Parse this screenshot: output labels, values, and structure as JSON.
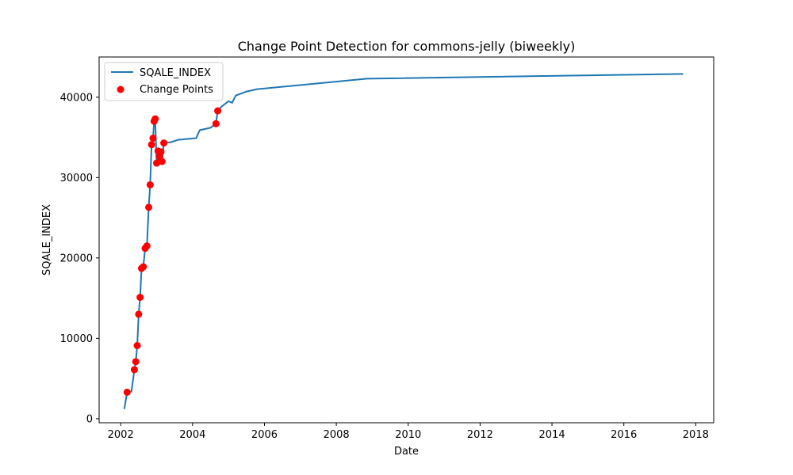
{
  "chart_data": {
    "type": "line",
    "title": "Change Point Detection for commons-jelly (biweekly)",
    "xlabel": "Date",
    "ylabel": "SQALE_INDEX",
    "xlim": [
      2001.4,
      2018.5
    ],
    "ylim": [
      -500,
      45000
    ],
    "x_ticks": [
      2002,
      2004,
      2006,
      2008,
      2010,
      2012,
      2014,
      2016,
      2018
    ],
    "x_tick_labels": [
      "2002",
      "2004",
      "2006",
      "2008",
      "2010",
      "2012",
      "2014",
      "2016",
      "2018"
    ],
    "y_ticks": [
      0,
      10000,
      20000,
      30000,
      40000
    ],
    "y_tick_labels": [
      "0",
      "10000",
      "20000",
      "30000",
      "40000"
    ],
    "legend_position": "upper-left",
    "series": [
      {
        "name": "SQALE_INDEX",
        "kind": "line",
        "color": "#1f77b4",
        "points": [
          [
            2002.1,
            1200
          ],
          [
            2002.18,
            3300
          ],
          [
            2002.3,
            3400
          ],
          [
            2002.38,
            6100
          ],
          [
            2002.42,
            7100
          ],
          [
            2002.46,
            9100
          ],
          [
            2002.5,
            13000
          ],
          [
            2002.54,
            15100
          ],
          [
            2002.58,
            18700
          ],
          [
            2002.63,
            18900
          ],
          [
            2002.68,
            21200
          ],
          [
            2002.73,
            21500
          ],
          [
            2002.78,
            26300
          ],
          [
            2002.82,
            29100
          ],
          [
            2002.86,
            34100
          ],
          [
            2002.9,
            34900
          ],
          [
            2002.93,
            37000
          ],
          [
            2002.96,
            37300
          ],
          [
            2003.0,
            31800
          ],
          [
            2003.04,
            33300
          ],
          [
            2003.08,
            32600
          ],
          [
            2003.12,
            33200
          ],
          [
            2003.15,
            32000
          ],
          [
            2003.2,
            34300
          ],
          [
            2003.4,
            34400
          ],
          [
            2003.6,
            34700
          ],
          [
            2004.1,
            34900
          ],
          [
            2004.2,
            35900
          ],
          [
            2004.5,
            36200
          ],
          [
            2004.65,
            36700
          ],
          [
            2004.7,
            38300
          ],
          [
            2004.8,
            38800
          ],
          [
            2005.0,
            39500
          ],
          [
            2005.1,
            39300
          ],
          [
            2005.2,
            40200
          ],
          [
            2005.5,
            40700
          ],
          [
            2005.8,
            41000
          ],
          [
            2008.85,
            42300
          ],
          [
            2017.65,
            42900
          ]
        ]
      },
      {
        "name": "Change Points",
        "kind": "scatter",
        "color": "#ff0000",
        "points": [
          [
            2002.18,
            3300
          ],
          [
            2002.38,
            6100
          ],
          [
            2002.42,
            7100
          ],
          [
            2002.46,
            9100
          ],
          [
            2002.5,
            13000
          ],
          [
            2002.54,
            15100
          ],
          [
            2002.58,
            18700
          ],
          [
            2002.63,
            18900
          ],
          [
            2002.68,
            21200
          ],
          [
            2002.73,
            21500
          ],
          [
            2002.78,
            26300
          ],
          [
            2002.82,
            29100
          ],
          [
            2002.86,
            34100
          ],
          [
            2002.9,
            34900
          ],
          [
            2002.93,
            37000
          ],
          [
            2002.96,
            37300
          ],
          [
            2003.0,
            31800
          ],
          [
            2003.04,
            33300
          ],
          [
            2003.08,
            32600
          ],
          [
            2003.12,
            33200
          ],
          [
            2003.15,
            32000
          ],
          [
            2003.2,
            34300
          ],
          [
            2004.65,
            36700
          ],
          [
            2004.7,
            38300
          ]
        ]
      }
    ]
  }
}
